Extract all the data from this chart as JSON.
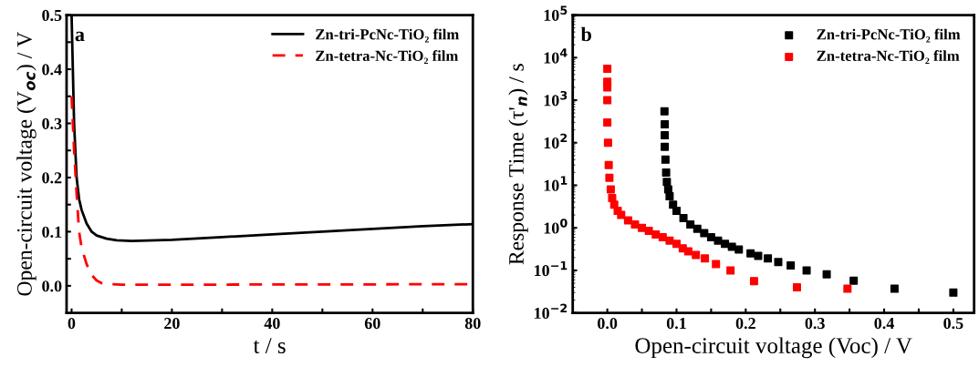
{
  "chart_data": [
    {
      "type": "line",
      "xlabel": "t / s",
      "ylabel": "Open-circuit voltage (V$_{oc}$) / V",
      "annotations": [
        "a"
      ],
      "legend": "top right",
      "grid": false,
      "xlim": [
        -1,
        80
      ],
      "ylim": [
        -0.05,
        0.5
      ],
      "xticks": [
        0,
        {
          "value": 10,
          "label": null
        },
        20,
        {
          "value": 30,
          "label": null
        },
        40,
        {
          "value": 50,
          "label": null
        },
        60,
        {
          "value": 70,
          "label": null
        },
        80
      ],
      "yticks": [
        {
          "value": 0,
          "label": "0.0"
        },
        {
          "value": 0.05,
          "label": null
        },
        0.1,
        {
          "value": 0.15,
          "label": null
        },
        0.2,
        {
          "value": 0.25,
          "label": null
        },
        0.3,
        {
          "value": 0.35,
          "label": null
        },
        0.4,
        {
          "value": 0.45,
          "label": null
        },
        0.5
      ],
      "series": [
        {
          "name": "Zn-tri-PcNc-TiO₂ film",
          "color": "#000000",
          "line_style": "solid",
          "x": [
            0,
            0.1,
            0.5,
            1,
            1.5,
            2,
            3,
            4,
            5,
            7,
            9,
            12,
            20,
            30,
            40,
            50,
            60,
            70,
            80
          ],
          "values": [
            0.5,
            0.46,
            0.3,
            0.2,
            0.16,
            0.14,
            0.115,
            0.1,
            0.093,
            0.087,
            0.084,
            0.083,
            0.085,
            0.09,
            0.095,
            0.1,
            0.105,
            0.11,
            0.114
          ]
        },
        {
          "name": "Zn-tetra-Nc-TiO₂ film",
          "color": "#ff0000",
          "line_style": "dashed",
          "x": [
            0,
            0.5,
            1,
            1.5,
            2,
            3,
            4,
            5,
            6,
            8,
            10,
            80
          ],
          "values": [
            0.35,
            0.25,
            0.17,
            0.1,
            0.07,
            0.04,
            0.02,
            0.01,
            0.005,
            0.003,
            0.002,
            0.003
          ]
        }
      ]
    },
    {
      "type": "scatter",
      "xlabel": "Open-circuit voltage (Voc) / V",
      "ylabel": "Response Time (τ'$_{n}$) / s",
      "annotations": [
        "b"
      ],
      "legend": "top right",
      "grid": false,
      "log": "y",
      "marker": "square",
      "xlim": [
        -0.05,
        0.53
      ],
      "ylim": [
        0.01,
        100000
      ],
      "xticks": [
        {
          "value": 0,
          "label": "0.0"
        },
        {
          "value": 0.05,
          "label": null
        },
        0.1,
        {
          "value": 0.15,
          "label": null
        },
        0.2,
        {
          "value": 0.25,
          "label": null
        },
        0.3,
        {
          "value": 0.35,
          "label": null
        },
        0.4,
        {
          "value": 0.45,
          "label": null
        },
        0.5
      ],
      "yticks": [
        {
          "value": 0.01,
          "label": "10$^{−2}$"
        },
        {
          "value": 0.1,
          "label": "10$^{−1}$"
        },
        {
          "value": 1,
          "label": "10$^{0}$"
        },
        {
          "value": 10,
          "label": "10$^{1}$"
        },
        {
          "value": 100,
          "label": "10$^{2}$"
        },
        {
          "value": 1000,
          "label": "10$^{3}$"
        },
        {
          "value": 10000,
          "label": "10$^{4}$"
        },
        {
          "value": 100000,
          "label": "10$^{5}$"
        }
      ],
      "series": [
        {
          "name": "Zn-tri-PcNc-TiO₂ film",
          "color": "#000000",
          "x": [
            0.0826,
            0.083,
            0.083,
            0.083,
            0.084,
            0.085,
            0.086,
            0.088,
            0.09,
            0.095,
            0.1,
            0.11,
            0.12,
            0.13,
            0.14,
            0.15,
            0.16,
            0.17,
            0.18,
            0.19,
            0.207,
            0.218,
            0.232,
            0.247,
            0.265,
            0.288,
            0.317,
            0.356,
            0.415,
            0.5
          ],
          "values": [
            550,
            270,
            150,
            80,
            40,
            20,
            12,
            8,
            5.5,
            3.5,
            2.5,
            1.7,
            1.2,
            0.95,
            0.75,
            0.6,
            0.5,
            0.42,
            0.36,
            0.31,
            0.25,
            0.22,
            0.19,
            0.157,
            0.13,
            0.1,
            0.081,
            0.057,
            0.037,
            0.03
          ]
        },
        {
          "name": "Zn-tetra-Nc-TiO₂ film",
          "color": "#ff0000",
          "x": [
            0,
            0,
            0,
            0,
            0,
            0.001,
            0.002,
            0.003,
            0.005,
            0.007,
            0.01,
            0.015,
            0.02,
            0.03,
            0.04,
            0.05,
            0.06,
            0.07,
            0.08,
            0.09,
            0.1,
            0.109,
            0.117,
            0.128,
            0.141,
            0.157,
            0.178,
            0.212,
            0.274,
            0.347
          ],
          "values": [
            5500,
            2700,
            2000,
            1000,
            300,
            100,
            30,
            15,
            8,
            5,
            3.5,
            2.5,
            2,
            1.5,
            1.2,
            1,
            0.85,
            0.7,
            0.6,
            0.5,
            0.42,
            0.33,
            0.28,
            0.23,
            0.19,
            0.14,
            0.099,
            0.056,
            0.04,
            0.037
          ]
        }
      ]
    }
  ]
}
